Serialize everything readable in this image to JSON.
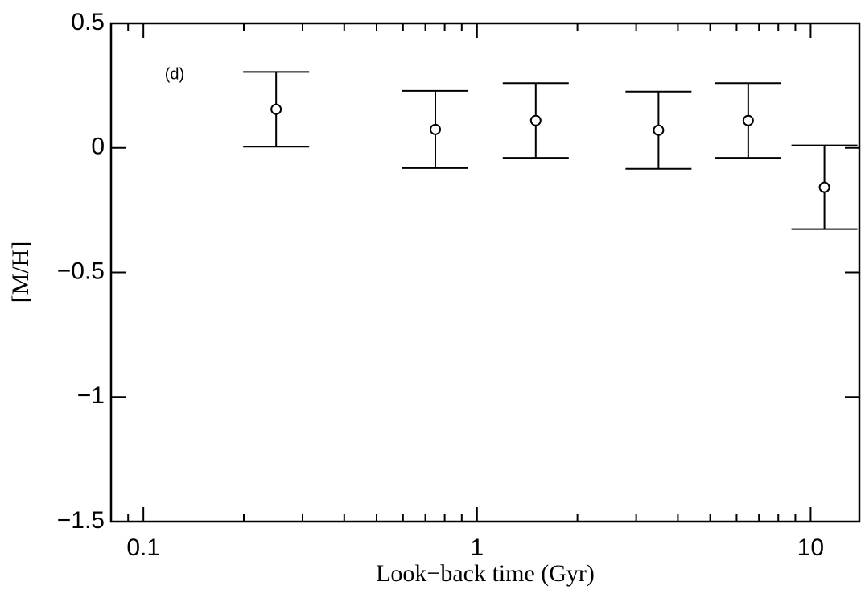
{
  "chart_data": {
    "type": "errorbar",
    "annotation": "(d)",
    "xlabel": "Look−back time (Gyr)",
    "ylabel": "[M/H]",
    "x": [
      0.25,
      0.75,
      1.5,
      3.5,
      6.5,
      11
    ],
    "values": [
      0.155,
      0.074,
      0.11,
      0.071,
      0.11,
      -0.158
    ],
    "errors": [
      0.15,
      0.155,
      0.15,
      0.155,
      0.15,
      0.168
    ],
    "color": "#000000",
    "xscale": "log",
    "xlim": [
      0.08,
      14
    ],
    "xticks": [
      0.1,
      1,
      10
    ],
    "xminorticks": [
      0.09,
      0.2,
      0.3,
      0.4,
      0.5,
      0.6,
      0.7,
      0.8,
      0.9,
      2,
      3,
      4,
      5,
      6,
      7,
      8,
      9
    ],
    "ylim": [
      -1.5,
      0.5
    ],
    "yticks": [
      0.5,
      0,
      {
        "value": -0.5,
        "label": "−0.5"
      },
      {
        "value": -1,
        "label": "−1"
      },
      {
        "value": -1.5,
        "label": "−1.5"
      }
    ]
  }
}
